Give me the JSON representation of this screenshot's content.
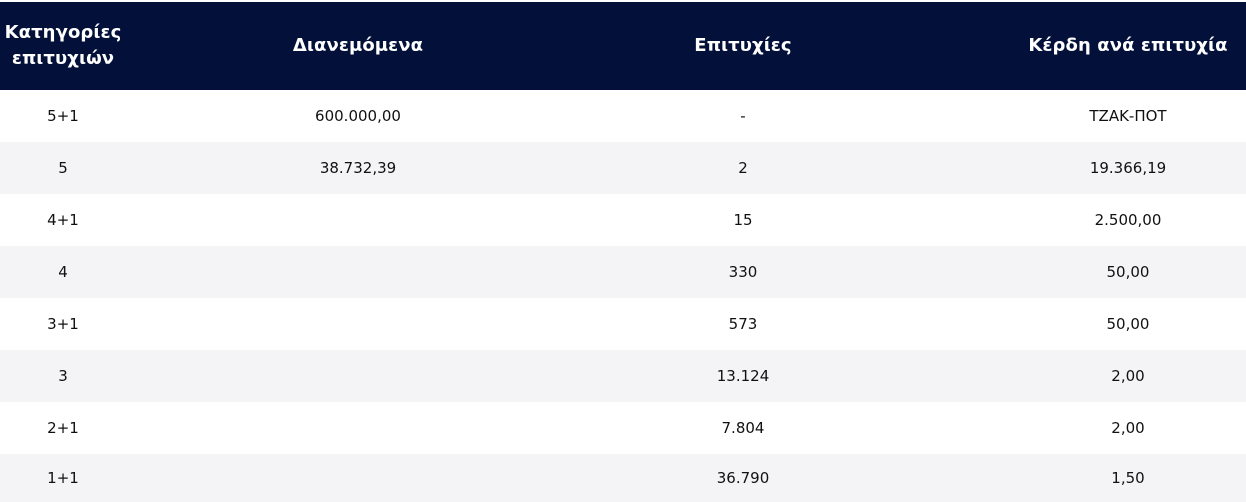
{
  "table": {
    "headers": {
      "category": "Κατηγορίες επιτυχιών",
      "distributed": "Διανεμόμενα",
      "winners": "Επιτυχίες",
      "prize_per_winner": "Κέρδη ανά επιτυχία"
    },
    "rows": [
      {
        "category": "5+1",
        "distributed": "600.000,00",
        "winners": "-",
        "prize": "ΤΖΑΚ-ΠΟΤ"
      },
      {
        "category": "5",
        "distributed": "38.732,39",
        "winners": "2",
        "prize": "19.366,19"
      },
      {
        "category": "4+1",
        "distributed": "",
        "winners": "15",
        "prize": "2.500,00"
      },
      {
        "category": "4",
        "distributed": "",
        "winners": "330",
        "prize": "50,00"
      },
      {
        "category": "3+1",
        "distributed": "",
        "winners": "573",
        "prize": "50,00"
      },
      {
        "category": "3",
        "distributed": "",
        "winners": "13.124",
        "prize": "2,00"
      },
      {
        "category": "2+1",
        "distributed": "",
        "winners": "7.804",
        "prize": "2,00"
      },
      {
        "category": "1+1",
        "distributed": "",
        "winners": "36.790",
        "prize": "1,50"
      }
    ]
  },
  "colors": {
    "header_background": "#03103a",
    "header_text": "#ffffff",
    "row_alt_background": "#f4f4f6",
    "body_text": "#111111"
  }
}
